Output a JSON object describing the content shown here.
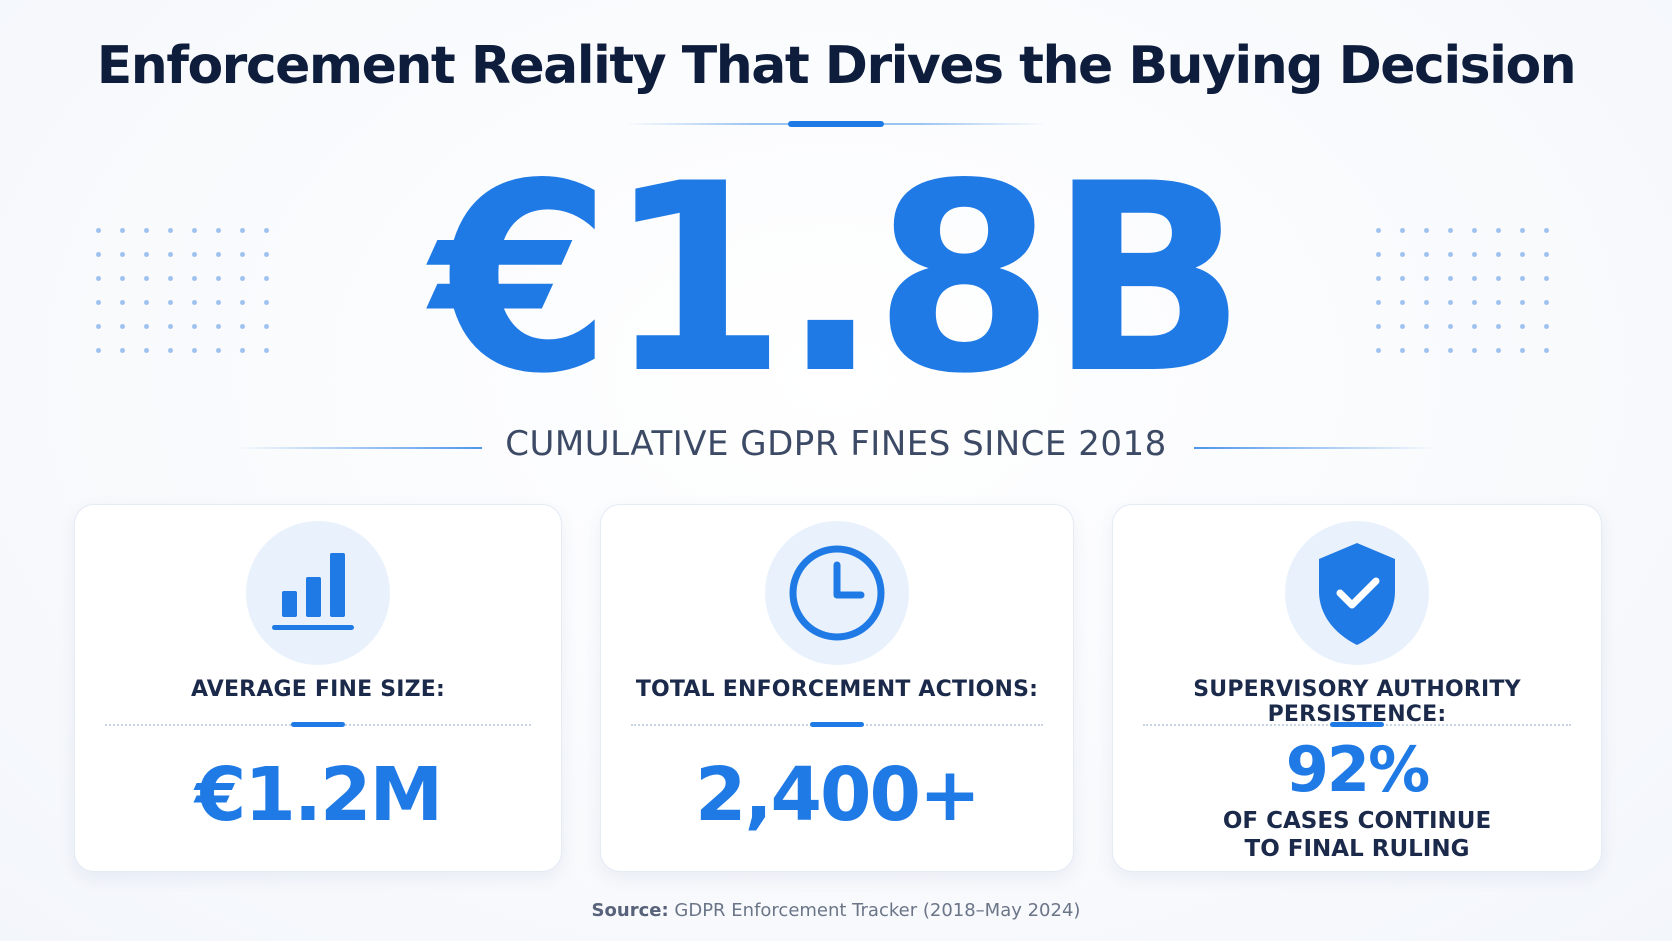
{
  "title": "Enforcement Reality That Drives the Buying Decision",
  "hero": {
    "value": "€1.8B",
    "caption": "CUMULATIVE GDPR FINES SINCE 2018"
  },
  "colors": {
    "accent": "#1f7ae6",
    "title": "#0f1d3d",
    "icon_background": "#e8f1fc"
  },
  "cards": [
    {
      "icon": "bar-chart-icon",
      "label": "AVERAGE FINE SIZE:",
      "value": "€1.2M"
    },
    {
      "icon": "clock-icon",
      "label": "TOTAL ENFORCEMENT ACTIONS:",
      "value": "2,400+"
    },
    {
      "icon": "shield-check-icon",
      "label": "SUPERVISORY AUTHORITY PERSISTENCE:",
      "value": "92%",
      "note_line1": "OF CASES CONTINUE",
      "note_line2": "TO FINAL RULING"
    }
  ],
  "source": {
    "label": "Source:",
    "text": "GDPR Enforcement Tracker (2018–May 2024)"
  }
}
